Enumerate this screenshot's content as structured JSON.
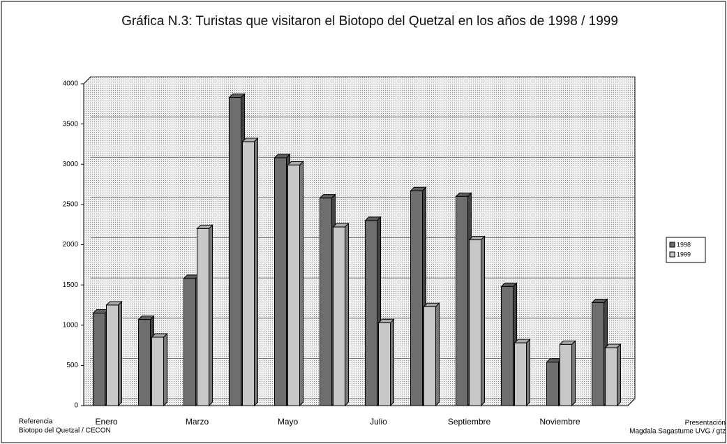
{
  "chart_data": {
    "type": "bar",
    "title": "Gráfica N.3: Turistas que visitaron el Biotopo del Quetzal en los años de 1998 / 1999",
    "categories": [
      "Enero",
      null,
      "Marzo",
      null,
      "Mayo",
      null,
      "Julio",
      null,
      "Septiembre",
      null,
      "Noviembre",
      null
    ],
    "series": [
      {
        "name": "1998",
        "color": "#6e6e6e",
        "values": [
          1150,
          1070,
          1580,
          3830,
          3080,
          2580,
          2300,
          2670,
          2600,
          1480,
          540,
          1280
        ]
      },
      {
        "name": "1999",
        "color": "#c8c8c8",
        "values": [
          1250,
          850,
          2200,
          3280,
          2990,
          2220,
          1030,
          1230,
          2060,
          780,
          760,
          720
        ]
      }
    ],
    "ylim": [
      0,
      4000
    ],
    "yticks": [
      0,
      500,
      1000,
      1500,
      2000,
      2500,
      3000,
      3500,
      4000
    ],
    "grid": true,
    "legend": "right",
    "annotations": [
      "Referencia",
      "Biotopo del Quetzal / CECON",
      "Presentación",
      "Magdala Sagastume  UVG / gtz"
    ]
  }
}
